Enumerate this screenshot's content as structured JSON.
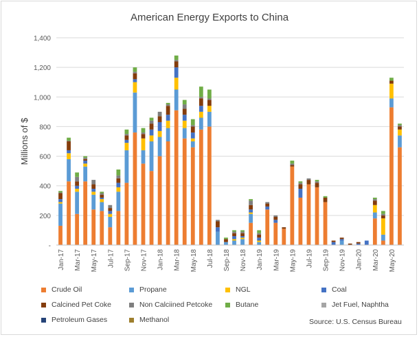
{
  "chart_data": {
    "type": "bar",
    "stacked": true,
    "title": "American Energy Exports to China",
    "xlabel": "",
    "ylabel": "Millions of $",
    "ylim": [
      0,
      1400
    ],
    "yticks": [
      0,
      200,
      400,
      600,
      800,
      1000,
      1200,
      1400
    ],
    "ytick_labels": [
      "-",
      "200",
      "400",
      "600",
      "800",
      "1,000",
      "1,200",
      "1,400"
    ],
    "grid": true,
    "legend_position": "bottom",
    "categories": [
      "Jan-17",
      "Feb-17",
      "Mar-17",
      "Apr-17",
      "May-17",
      "Jun-17",
      "Jul-17",
      "Aug-17",
      "Sep-17",
      "Oct-17",
      "Nov-17",
      "Dec-17",
      "Jan-18",
      "Feb-18",
      "Mar-18",
      "Apr-18",
      "May-18",
      "Jun-18",
      "Jul-18",
      "Aug-18",
      "Sep-18",
      "Oct-18",
      "Nov-18",
      "Dec-18",
      "Jan-19",
      "Feb-19",
      "Mar-19",
      "Apr-19",
      "May-19",
      "Jun-19",
      "Jul-19",
      "Aug-19",
      "Sep-19",
      "Oct-19",
      "Nov-19",
      "Dec-19",
      "Jan-20",
      "Feb-20",
      "Mar-20",
      "Apr-20",
      "May-20",
      "Jun-20"
    ],
    "tick_labels": [
      "Jan-17",
      "",
      "Mar-17",
      "",
      "May-17",
      "",
      "Jul-17",
      "",
      "Sep-17",
      "",
      "Nov-17",
      "",
      "Jan-18",
      "",
      "Mar-18",
      "",
      "May-18",
      "",
      "Jul-18",
      "",
      "Sep-18",
      "",
      "Nov-18",
      "",
      "Jan-19",
      "",
      "Mar-19",
      "",
      "May-19",
      "",
      "Jul-19",
      "",
      "Sep-19",
      "",
      "Nov-19",
      "",
      "Jan-20",
      "",
      "Mar-20",
      "",
      "May-20",
      ""
    ],
    "series": [
      {
        "name": "Crude Oil",
        "color": "#ED7D31",
        "values": [
          130,
          430,
          210,
          430,
          240,
          230,
          120,
          230,
          420,
          760,
          550,
          500,
          600,
          700,
          910,
          720,
          660,
          780,
          800,
          0,
          0,
          0,
          0,
          150,
          0,
          240,
          150,
          110,
          530,
          320,
          410,
          390,
          290,
          0,
          0,
          0,
          0,
          0,
          180,
          30,
          930,
          660
        ]
      },
      {
        "name": "Propane",
        "color": "#5B9BD5",
        "values": [
          150,
          150,
          150,
          100,
          100,
          60,
          70,
          130,
          220,
          270,
          90,
          200,
          130,
          90,
          140,
          70,
          40,
          80,
          100,
          90,
          20,
          30,
          40,
          60,
          20,
          0,
          0,
          0,
          0,
          0,
          0,
          0,
          0,
          0,
          30,
          0,
          0,
          0,
          40,
          40,
          60,
          80
        ]
      },
      {
        "name": "NGL",
        "color": "#FFC000",
        "values": [
          10,
          40,
          20,
          20,
          20,
          20,
          20,
          30,
          50,
          70,
          80,
          40,
          40,
          50,
          80,
          50,
          20,
          40,
          40,
          0,
          0,
          10,
          10,
          10,
          10,
          0,
          0,
          0,
          0,
          0,
          0,
          0,
          0,
          0,
          0,
          0,
          0,
          0,
          50,
          110,
          100,
          40
        ]
      },
      {
        "name": "Coal",
        "color": "#4472C4",
        "values": [
          20,
          20,
          20,
          20,
          20,
          10,
          20,
          30,
          20,
          20,
          0,
          40,
          60,
          40,
          70,
          40,
          40,
          40,
          0,
          30,
          0,
          20,
          10,
          20,
          20,
          20,
          20,
          0,
          0,
          60,
          0,
          0,
          0,
          20,
          10,
          0,
          10,
          30,
          0,
          0,
          0,
          0
        ]
      },
      {
        "name": "Calcined Pet Coke",
        "color": "#843C0C",
        "values": [
          40,
          60,
          30,
          10,
          30,
          20,
          20,
          30,
          30,
          40,
          30,
          40,
          40,
          60,
          40,
          40,
          40,
          50,
          40,
          40,
          20,
          20,
          20,
          30,
          20,
          20,
          20,
          10,
          10,
          30,
          30,
          30,
          30,
          10,
          10,
          10,
          10,
          0,
          30,
          20,
          20,
          20
        ]
      },
      {
        "name": "Non Calciined Petcoke",
        "color": "#7F7F7F",
        "values": [
          5,
          5,
          30,
          10,
          30,
          10,
          20,
          20,
          10,
          10,
          10,
          20,
          30,
          10,
          10,
          30,
          10,
          10,
          10,
          10,
          0,
          10,
          10,
          30,
          10,
          10,
          10,
          0,
          10,
          10,
          10,
          10,
          0,
          0,
          0,
          0,
          0,
          0,
          10,
          10,
          0,
          10
        ]
      },
      {
        "name": "Butane",
        "color": "#70AD47",
        "values": [
          10,
          20,
          30,
          10,
          0,
          10,
          0,
          40,
          30,
          30,
          30,
          20,
          0,
          10,
          30,
          30,
          40,
          70,
          60,
          0,
          10,
          10,
          10,
          10,
          20,
          0,
          0,
          0,
          20,
          10,
          0,
          10,
          10,
          0,
          0,
          0,
          0,
          0,
          10,
          20,
          20,
          10
        ]
      },
      {
        "name": "Jet Fuel, Naphtha",
        "color": "#A5A5A5",
        "values": [
          0,
          0,
          0,
          0,
          0,
          0,
          0,
          0,
          0,
          0,
          0,
          0,
          0,
          0,
          0,
          0,
          0,
          0,
          0,
          0,
          0,
          0,
          0,
          0,
          0,
          0,
          0,
          0,
          0,
          0,
          0,
          0,
          0,
          0,
          0,
          0,
          0,
          0,
          0,
          0,
          0,
          0
        ]
      },
      {
        "name": "Petroleum Gases",
        "color": "#264478",
        "values": [
          0,
          0,
          0,
          0,
          0,
          0,
          0,
          0,
          0,
          0,
          0,
          0,
          0,
          0,
          0,
          0,
          0,
          0,
          0,
          0,
          0,
          0,
          0,
          0,
          0,
          0,
          0,
          0,
          0,
          0,
          0,
          0,
          0,
          0,
          0,
          0,
          0,
          0,
          0,
          0,
          0,
          0
        ]
      },
      {
        "name": "Methanol",
        "color": "#9E7F2E",
        "values": [
          0,
          0,
          0,
          0,
          0,
          0,
          0,
          0,
          0,
          0,
          0,
          0,
          0,
          0,
          0,
          0,
          0,
          0,
          0,
          0,
          0,
          0,
          0,
          0,
          0,
          0,
          0,
          0,
          0,
          0,
          0,
          0,
          0,
          0,
          0,
          0,
          0,
          0,
          0,
          0,
          0,
          0
        ]
      }
    ],
    "annotations": [
      "Source: U.S. Census Bureau"
    ]
  },
  "source_text": "Source: U.S. Census Bureau"
}
